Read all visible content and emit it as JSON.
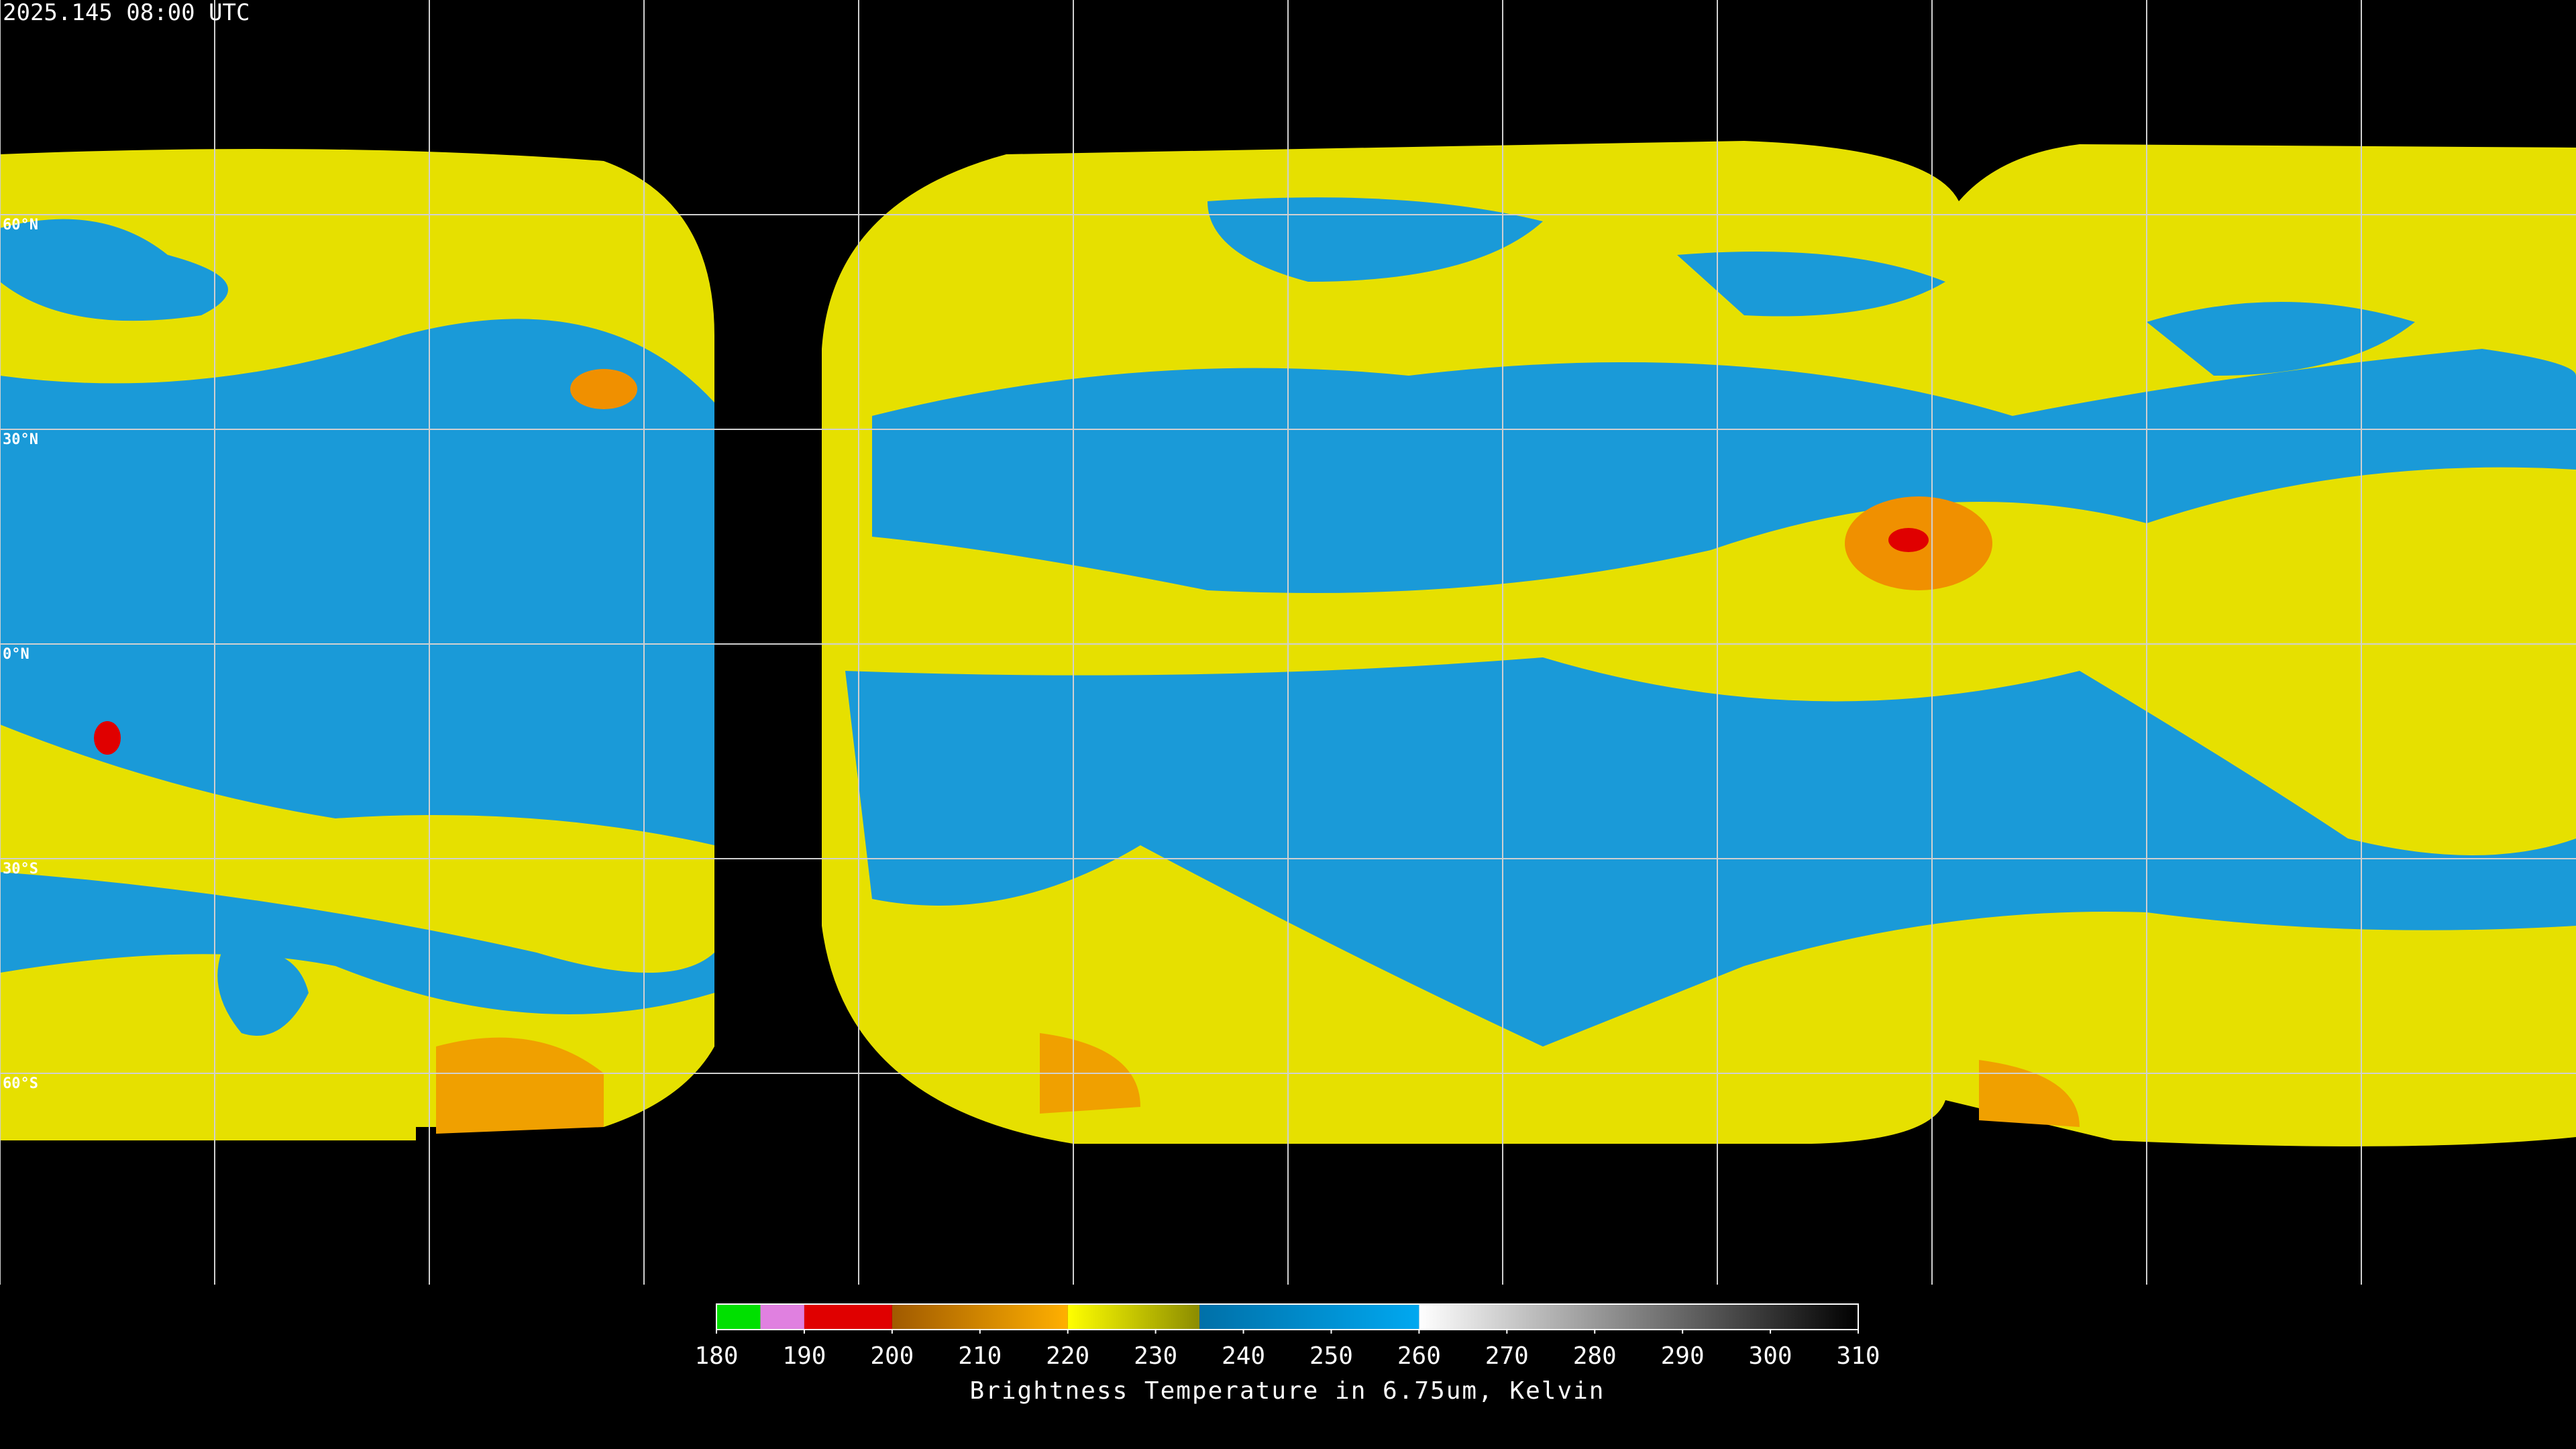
{
  "timestamp": "2025.145 08:00 UTC",
  "lat_labels": [
    "60°N",
    "30°N",
    "0°N",
    "30°S",
    "60°S"
  ],
  "colorbar": {
    "label": "Brightness Temperature in 6.75um, Kelvin",
    "range": [
      180,
      310
    ],
    "ticks": [
      180,
      190,
      200,
      210,
      220,
      230,
      240,
      250,
      260,
      270,
      280,
      290,
      300,
      310
    ],
    "segments": [
      {
        "from": 180,
        "to": 185,
        "colors": [
          "#00e000",
          "#00e000"
        ]
      },
      {
        "from": 185,
        "to": 190,
        "colors": [
          "#e080e0",
          "#e080e0"
        ]
      },
      {
        "from": 190,
        "to": 200,
        "colors": [
          "#e00000",
          "#e00000"
        ]
      },
      {
        "from": 200,
        "to": 220,
        "colors": [
          "#a05a00",
          "#ffb000"
        ]
      },
      {
        "from": 220,
        "to": 235,
        "colors": [
          "#ffff00",
          "#8c8c00"
        ]
      },
      {
        "from": 235,
        "to": 260,
        "colors": [
          "#0070a8",
          "#00a8f0"
        ]
      },
      {
        "from": 260,
        "to": 310,
        "colors": [
          "#ffffff",
          "#000000"
        ]
      }
    ]
  }
}
